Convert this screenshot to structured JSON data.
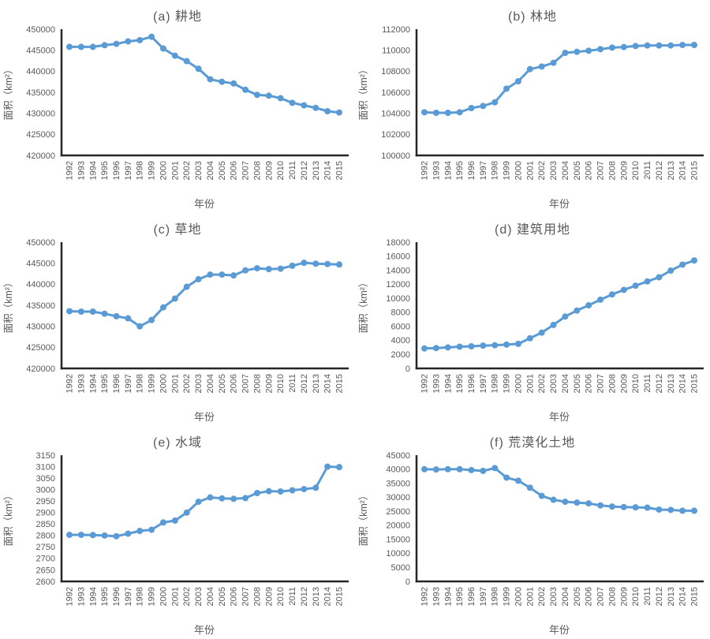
{
  "figure": {
    "xlabel": "年份",
    "ylabel": "面积（km²）",
    "years": [
      "1992",
      "1993",
      "1994",
      "1995",
      "1996",
      "1997",
      "1998",
      "1999",
      "2000",
      "2001",
      "2002",
      "2003",
      "2004",
      "2005",
      "2006",
      "2007",
      "2008",
      "2009",
      "2010",
      "2011",
      "2012",
      "2013",
      "2014",
      "2015"
    ],
    "colors": {
      "line": "#5B9BD5",
      "marker": "#5B9BD5",
      "axis": "#262626",
      "text": "#595959"
    }
  },
  "chart_data": [
    {
      "type": "line",
      "panel": "a",
      "title": "(a) 耕地",
      "xlabel": "年份",
      "ylabel": "面积（km²）",
      "ylim": [
        420000,
        450000
      ],
      "ytick_step": 5000,
      "values": [
        445800,
        445800,
        445800,
        446200,
        446500,
        447100,
        447400,
        448200,
        445400,
        443700,
        442400,
        440600,
        438100,
        437500,
        437100,
        435600,
        434400,
        434200,
        433600,
        432500,
        431900,
        431300,
        430500,
        430200
      ]
    },
    {
      "type": "line",
      "panel": "b",
      "title": "(b) 林地",
      "xlabel": "年份",
      "ylabel": "面积（km²）",
      "ylim": [
        100000,
        112000
      ],
      "ytick_step": 2000,
      "values": [
        104100,
        104050,
        104050,
        104100,
        104500,
        104700,
        105050,
        106350,
        107050,
        108200,
        108450,
        108800,
        109750,
        109850,
        109950,
        110100,
        110250,
        110300,
        110400,
        110450,
        110450,
        110450,
        110500,
        110500
      ]
    },
    {
      "type": "line",
      "panel": "c",
      "title": "(c) 草地",
      "xlabel": "年份",
      "ylabel": "面积（km²）",
      "ylim": [
        420000,
        450000
      ],
      "ytick_step": 5000,
      "values": [
        433600,
        433500,
        433500,
        433000,
        432400,
        431900,
        430000,
        431500,
        434500,
        436600,
        439400,
        441200,
        442300,
        442300,
        442100,
        443300,
        443800,
        443600,
        443700,
        444400,
        445100,
        444900,
        444800,
        444700
      ]
    },
    {
      "type": "line",
      "panel": "d",
      "title": "(d) 建筑用地",
      "xlabel": "年份",
      "ylabel": "面积（km²）",
      "ylim": [
        0,
        18000
      ],
      "ytick_step": 2000,
      "values": [
        2850,
        2900,
        3000,
        3100,
        3150,
        3250,
        3300,
        3400,
        3500,
        4300,
        5100,
        6200,
        7400,
        8250,
        9000,
        9800,
        10550,
        11200,
        11800,
        12400,
        13000,
        13950,
        14800,
        15400
      ]
    },
    {
      "type": "line",
      "panel": "e",
      "title": "(e) 水域",
      "xlabel": "年份",
      "ylabel": "面积（km²）",
      "ylim": [
        2600,
        3150
      ],
      "ytick_step": 50,
      "values": [
        2803,
        2803,
        2802,
        2800,
        2797,
        2808,
        2820,
        2825,
        2857,
        2865,
        2900,
        2947,
        2966,
        2962,
        2960,
        2963,
        2985,
        2993,
        2992,
        2997,
        3002,
        3008,
        3100,
        3098
      ]
    },
    {
      "type": "line",
      "panel": "f",
      "title": "(f) 荒漠化土地",
      "xlabel": "年份",
      "ylabel": "面积（km²）",
      "ylim": [
        0,
        45000
      ],
      "ytick_step": 5000,
      "values": [
        40000,
        39900,
        40000,
        40000,
        39700,
        39400,
        40400,
        37000,
        35900,
        33400,
        30500,
        29100,
        28400,
        28100,
        27800,
        27100,
        26700,
        26500,
        26400,
        26300,
        25600,
        25500,
        25200,
        25200
      ]
    }
  ]
}
